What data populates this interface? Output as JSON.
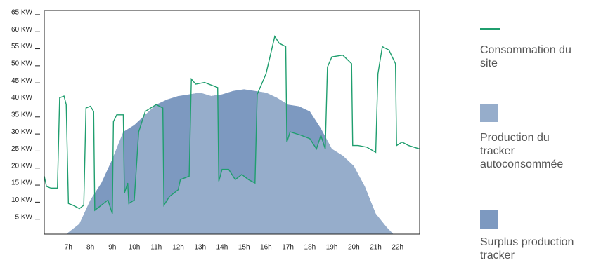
{
  "chart_data": {
    "type": "line-area",
    "xlim": [
      5.9,
      23
    ],
    "ylim": [
      0,
      65.6
    ],
    "xticks": [
      {
        "value": 7,
        "label": "7h"
      },
      {
        "value": 8,
        "label": "8h"
      },
      {
        "value": 9,
        "label": "9h"
      },
      {
        "value": 10,
        "label": "10h"
      },
      {
        "value": 11,
        "label": "11h"
      },
      {
        "value": 12,
        "label": "12h"
      },
      {
        "value": 13,
        "label": "13h"
      },
      {
        "value": 14,
        "label": "14h"
      },
      {
        "value": 15,
        "label": "15h"
      },
      {
        "value": 16,
        "label": "16h"
      },
      {
        "value": 17,
        "label": "17h"
      },
      {
        "value": 18,
        "label": "18h"
      },
      {
        "value": 19,
        "label": "19h"
      },
      {
        "value": 20,
        "label": "20h"
      },
      {
        "value": 21,
        "label": "21h"
      },
      {
        "value": 22,
        "label": "22h"
      }
    ],
    "yticks": [
      {
        "value": 5,
        "label": "5 KW"
      },
      {
        "value": 10,
        "label": "10 KW"
      },
      {
        "value": 15,
        "label": "15 KW"
      },
      {
        "value": 20,
        "label": "20 KW"
      },
      {
        "value": 25,
        "label": "25 KW"
      },
      {
        "value": 30,
        "label": "30 KW"
      },
      {
        "value": 35,
        "label": "35 KW"
      },
      {
        "value": 40,
        "label": "40 KW"
      },
      {
        "value": 45,
        "label": "45 KW"
      },
      {
        "value": 50,
        "label": "50 KW"
      },
      {
        "value": 55,
        "label": "55 KW"
      },
      {
        "value": 60,
        "label": "60 KW"
      },
      {
        "value": 65,
        "label": "65 KW"
      }
    ],
    "series": [
      {
        "name": "Consommation du site",
        "color": "#1f9e6e",
        "x": [
          5.9,
          6.0,
          6.2,
          6.5,
          6.6,
          6.8,
          6.9,
          7.0,
          7.2,
          7.5,
          7.7,
          7.8,
          8.0,
          8.15,
          8.2,
          8.5,
          8.8,
          9.0,
          9.05,
          9.2,
          9.5,
          9.55,
          9.7,
          9.75,
          10.0,
          10.2,
          10.5,
          11.0,
          11.3,
          11.35,
          11.6,
          12.0,
          12.1,
          12.5,
          12.6,
          12.8,
          13.2,
          13.8,
          13.85,
          14.0,
          14.3,
          14.6,
          14.9,
          15.2,
          15.5,
          15.6,
          16.0,
          16.4,
          16.6,
          16.9,
          16.95,
          17.1,
          17.6,
          18.0,
          18.3,
          18.5,
          18.7,
          18.8,
          19.0,
          19.5,
          19.9,
          19.95,
          20.2,
          20.6,
          21.0,
          21.1,
          21.3,
          21.6,
          21.9,
          21.95,
          22.2,
          22.5,
          23
        ],
        "values": [
          17,
          14,
          13.5,
          13.5,
          40,
          40.5,
          38,
          9,
          8.5,
          7.5,
          8.5,
          37,
          37.5,
          36,
          7,
          8.5,
          10,
          6,
          33,
          35,
          35,
          12,
          15,
          9,
          10,
          30,
          36,
          38,
          37,
          8.5,
          11,
          13,
          16,
          17,
          45.5,
          44,
          44.5,
          43,
          15.5,
          19,
          19,
          16,
          17.5,
          16,
          15,
          41,
          47,
          58,
          56,
          55,
          27,
          30,
          29,
          28,
          25,
          29,
          25,
          49,
          52,
          52.5,
          50,
          26,
          26,
          25.5,
          24,
          47,
          55,
          54,
          50,
          26,
          27,
          26,
          25
        ]
      },
      {
        "name": "Production du tracker autoconsommée",
        "color": "#96adcb",
        "x": [
          6.9,
          7.5,
          8,
          8.5,
          9,
          9.5,
          10,
          10.5,
          11,
          11.5,
          12,
          12.5,
          13,
          13.5,
          14,
          14.5,
          15,
          15.5,
          16,
          16.5,
          17,
          17.5,
          18,
          18.5,
          19,
          19.5,
          20,
          20.5,
          21,
          21.5,
          21.8
        ],
        "values": [
          0,
          3,
          10,
          15,
          22,
          30,
          32,
          35,
          38,
          39.5,
          40.5,
          41,
          41.5,
          40.5,
          41,
          42,
          42.5,
          42,
          41.5,
          40,
          38,
          37.5,
          36,
          31,
          25,
          23,
          20,
          14,
          6,
          2,
          0
        ]
      },
      {
        "name": "Surplus production tracker",
        "color": "#7d99c0"
      }
    ]
  }
}
